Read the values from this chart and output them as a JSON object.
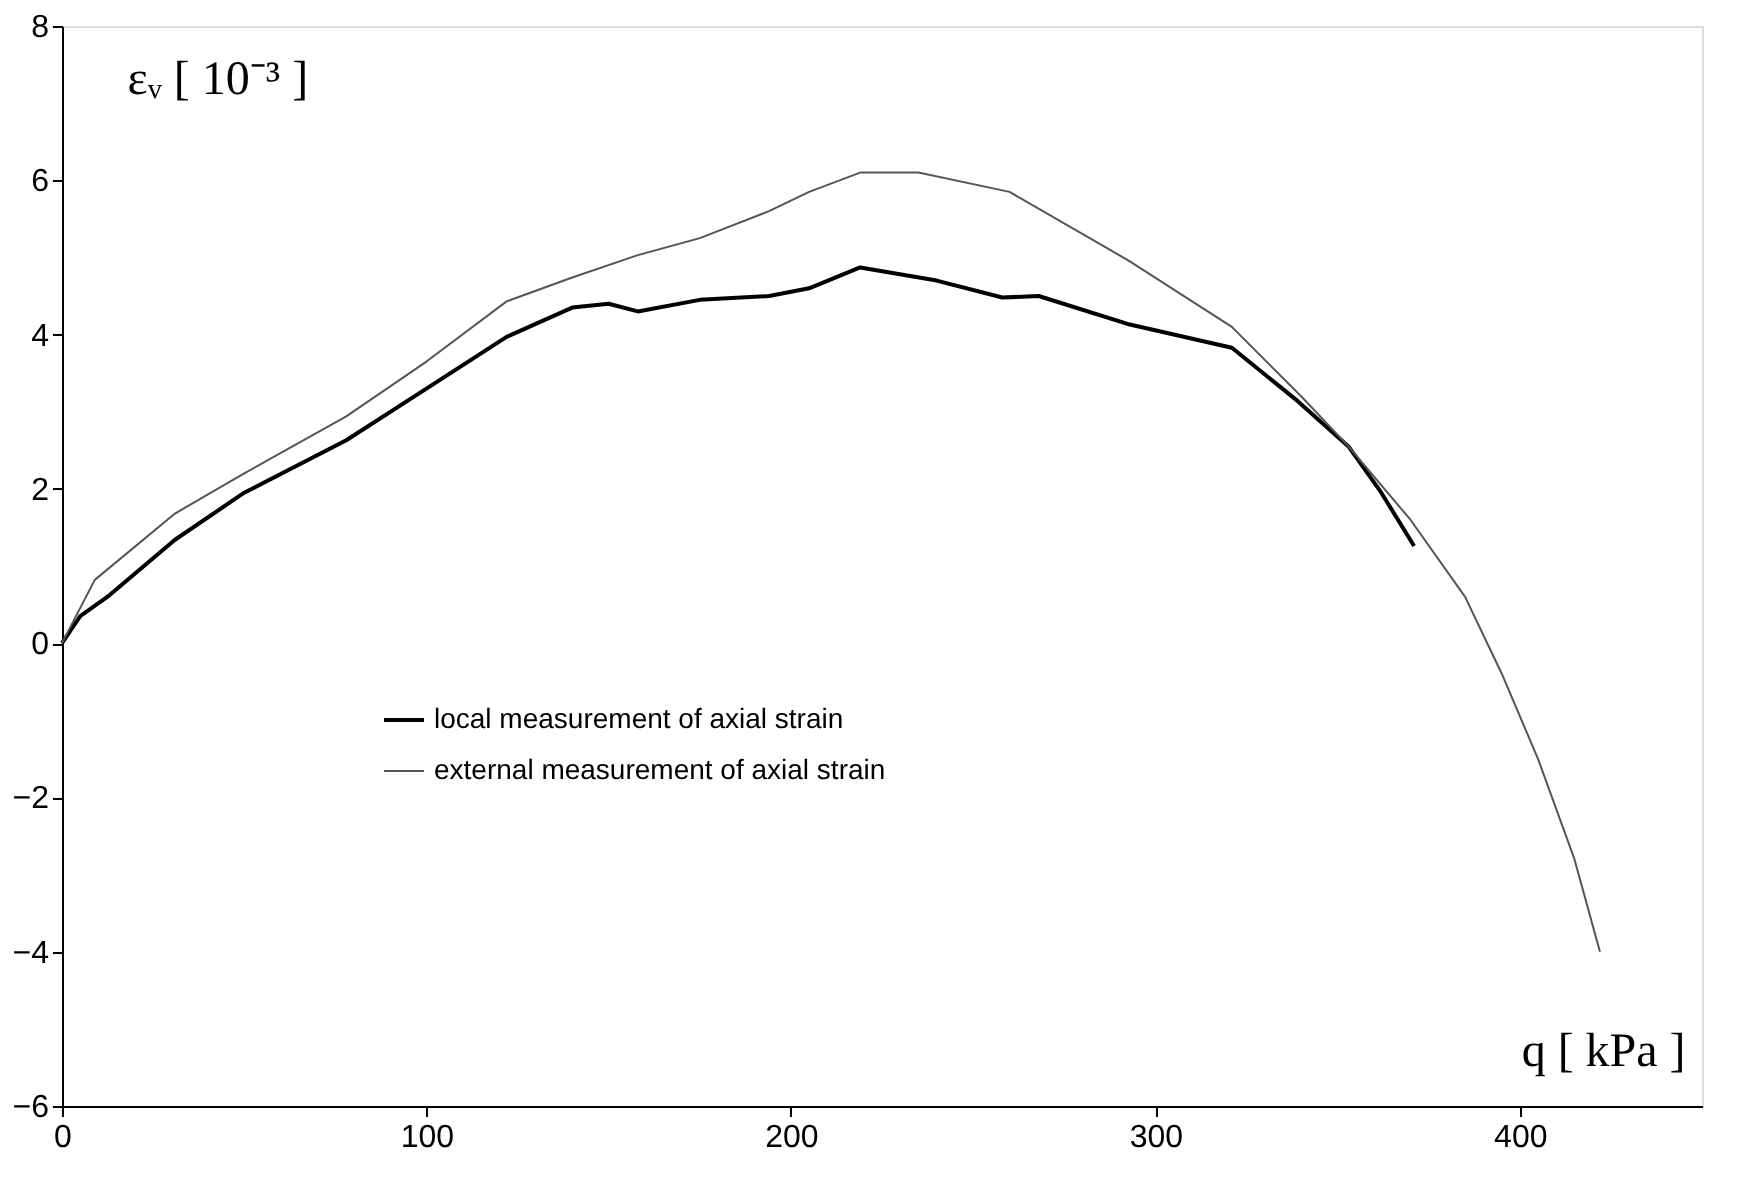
{
  "chart_data": {
    "type": "line",
    "xlabel": "q [ kPa ]",
    "ylabel": "εᵥ [ 10⁻³ ]",
    "xlim": [
      0,
      450
    ],
    "xticks": [
      0,
      100,
      200,
      300,
      400
    ],
    "ylim": [
      -6,
      8
    ],
    "yticks": [
      -6,
      -4,
      -2,
      0,
      2,
      4,
      6,
      8
    ],
    "grid": false,
    "legend": "bottom left",
    "marker": "none",
    "line_style": "solid",
    "series": [
      {
        "name": "local measurement of axial strain",
        "color": "#000000",
        "x": [
          0,
          5,
          13,
          31,
          50,
          78,
          100,
          122,
          140,
          150,
          158,
          175,
          194,
          205,
          219,
          240,
          258,
          268,
          293,
          321,
          339,
          353,
          362,
          371
        ],
        "values": [
          0,
          0.35,
          0.62,
          1.34,
          1.95,
          2.63,
          3.3,
          3.97,
          4.35,
          4.4,
          4.3,
          4.45,
          4.5,
          4.6,
          4.87,
          4.7,
          4.48,
          4.5,
          4.13,
          3.83,
          3.14,
          2.55,
          1.95,
          1.26
        ]
      },
      {
        "name": "external measurement of axial strain",
        "color": "#555555",
        "x": [
          0,
          9,
          31,
          50,
          78,
          100,
          122,
          140,
          158,
          175,
          194,
          205,
          219,
          235,
          260,
          293,
          321,
          340,
          353,
          370,
          385,
          395,
          405,
          415,
          422
        ],
        "values": [
          0,
          0.82,
          1.68,
          2.2,
          2.94,
          3.65,
          4.43,
          4.74,
          5.03,
          5.25,
          5.6,
          5.85,
          6.1,
          6.1,
          5.85,
          4.95,
          4.1,
          3.2,
          2.55,
          1.6,
          0.6,
          -0.39,
          -1.5,
          -2.8,
          -4.0
        ]
      }
    ]
  }
}
